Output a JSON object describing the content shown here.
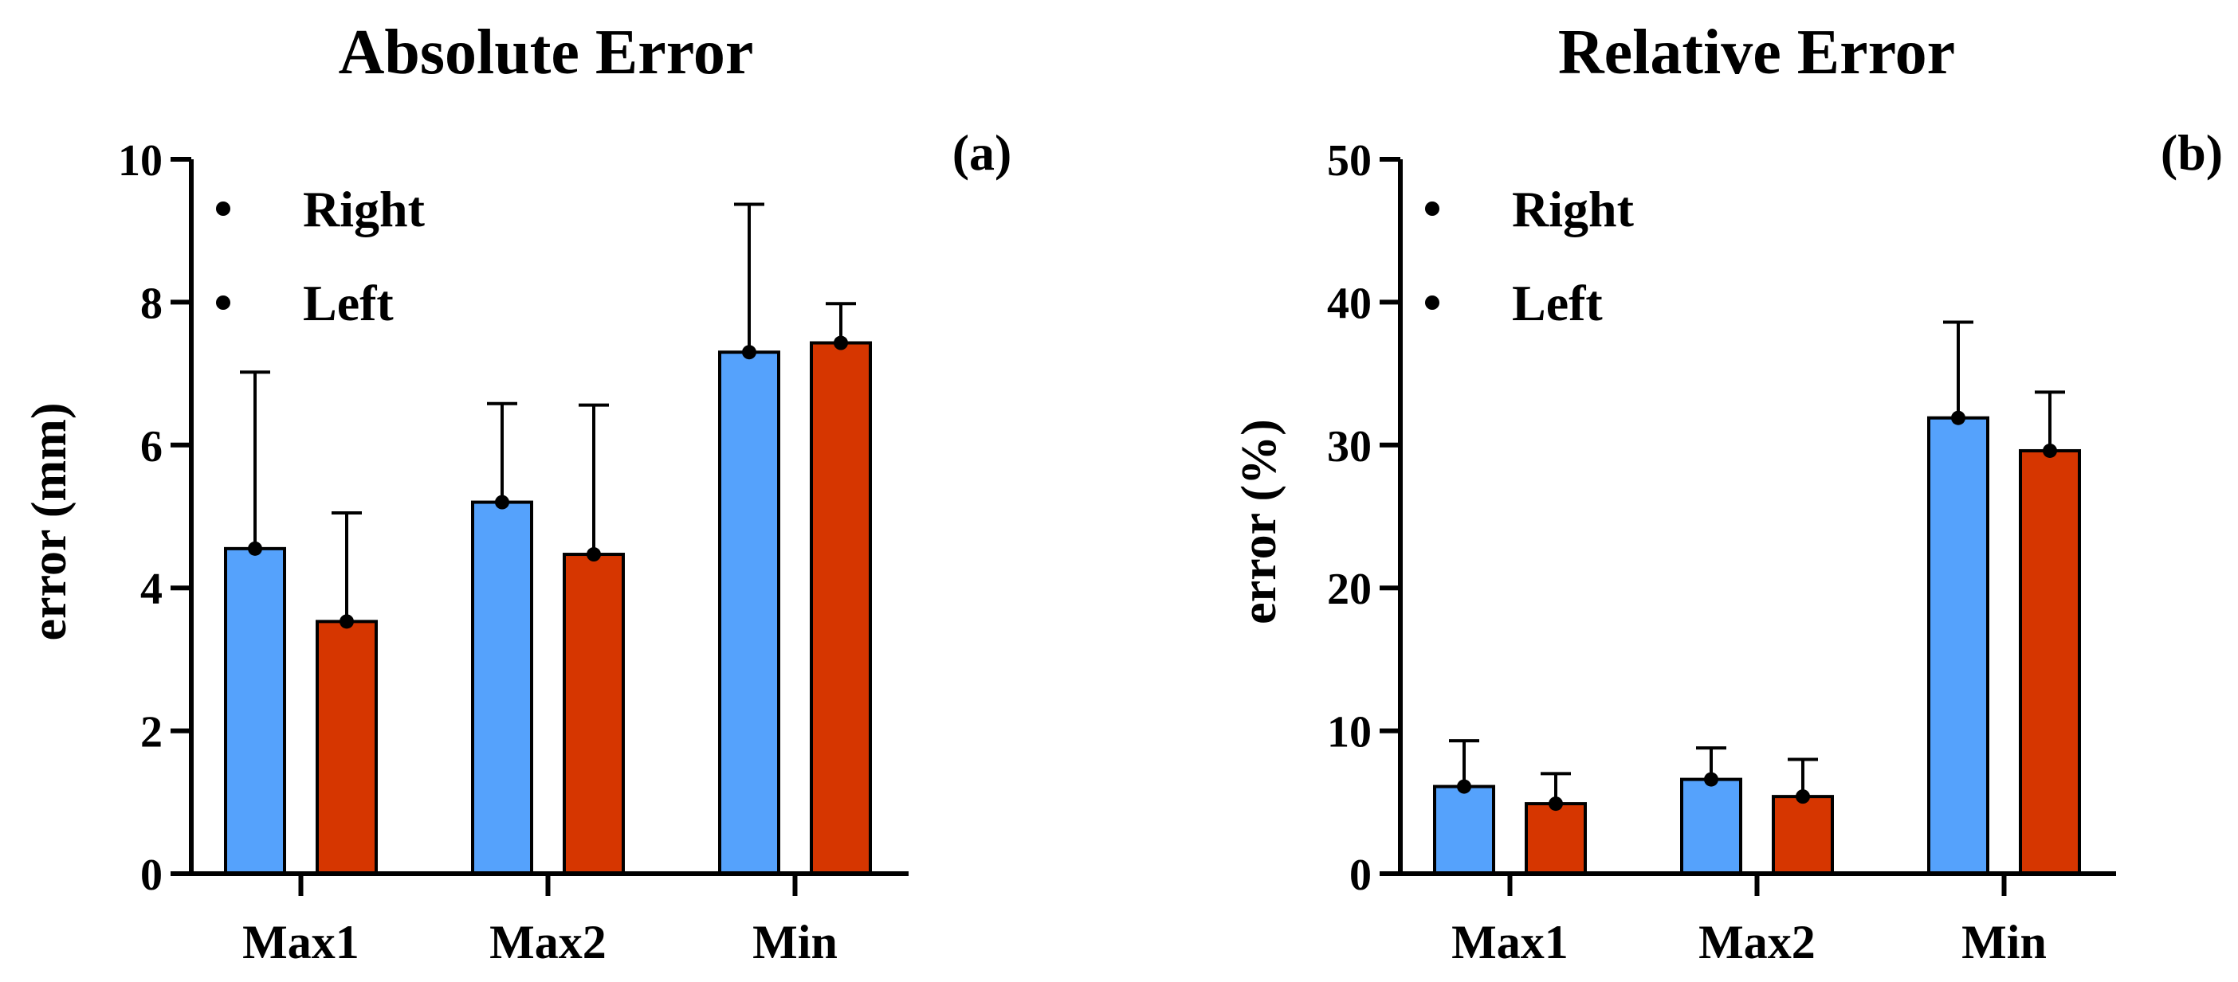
{
  "chart_data": [
    {
      "type": "bar",
      "title": "Absolute Error",
      "panel_label": "(a)",
      "ylabel": "error (mm)",
      "xlabel": "",
      "ylim": [
        0,
        10
      ],
      "yticks": [
        "0",
        "2",
        "4",
        "6",
        "8",
        "10"
      ],
      "legend_position": "top-left",
      "categories": [
        "Max1",
        "Max2",
        "Min"
      ],
      "series": [
        {
          "name": "Right",
          "color": "#55A2FC",
          "values": [
            4.55,
            5.2,
            7.3
          ],
          "error_upper": [
            7.02,
            6.58,
            9.37
          ]
        },
        {
          "name": "Left",
          "color": "#D63600",
          "values": [
            3.53,
            4.47,
            7.43
          ],
          "error_upper": [
            5.05,
            6.56,
            7.98
          ]
        }
      ]
    },
    {
      "type": "bar",
      "title": "Relative Error",
      "panel_label": "(b)",
      "ylabel": "error (%)",
      "xlabel": "",
      "ylim": [
        0,
        50
      ],
      "yticks": [
        "0",
        "10",
        "20",
        "30",
        "40",
        "50"
      ],
      "legend_position": "top-left",
      "categories": [
        "Max1",
        "Max2",
        "Min"
      ],
      "series": [
        {
          "name": "Right",
          "color": "#55A2FC",
          "values": [
            6.1,
            6.6,
            31.9
          ],
          "error_upper": [
            9.3,
            8.8,
            38.6
          ]
        },
        {
          "name": "Left",
          "color": "#D63600",
          "values": [
            4.9,
            5.4,
            29.6
          ],
          "error_upper": [
            7.0,
            8.0,
            33.7
          ]
        }
      ]
    }
  ]
}
